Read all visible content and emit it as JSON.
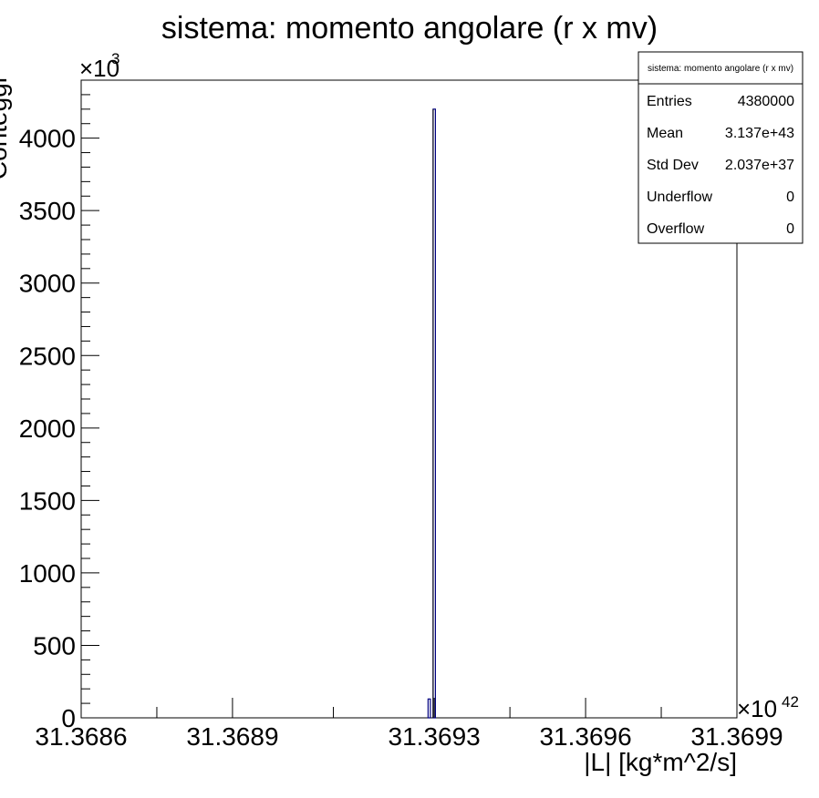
{
  "chart_data": {
    "type": "bar",
    "title": "sistema: momento angolare (r x mv)",
    "xlabel": "|L| [kg*m^2/s]",
    "ylabel": "Conteggi",
    "x_exponent_label": "×10",
    "x_exponent_power": "42",
    "y_exponent_label": "×10",
    "y_exponent_power": "3",
    "xlim": [
      31.3686,
      31.3699
    ],
    "ylim": [
      0,
      4400
    ],
    "x_ticks": [
      "31.3686",
      "31.3689",
      "31.3693",
      "31.3696",
      "31.3699"
    ],
    "x_tick_values": [
      31.3686,
      31.3689,
      31.3693,
      31.3696,
      31.3699
    ],
    "y_ticks": [
      "0",
      "500",
      "1000",
      "1500",
      "2000",
      "2500",
      "3000",
      "3500",
      "4000"
    ],
    "y_tick_values": [
      0,
      500,
      1000,
      1500,
      2000,
      2500,
      3000,
      3500,
      4000
    ],
    "bars": [
      {
        "x": 31.36929,
        "value": 130
      },
      {
        "x": 31.3693,
        "value": 4200
      }
    ],
    "bar_color": "#000080",
    "grid": false,
    "legend": "top-right"
  },
  "stats_box": {
    "title": "sistema: momento angolare (r x mv)",
    "rows": [
      {
        "label": "Entries",
        "value": "4380000"
      },
      {
        "label": "Mean",
        "value": "3.137e+43"
      },
      {
        "label": "Std Dev",
        "value": "2.037e+37"
      },
      {
        "label": "Underflow",
        "value": "0"
      },
      {
        "label": "Overflow",
        "value": "0"
      }
    ]
  }
}
